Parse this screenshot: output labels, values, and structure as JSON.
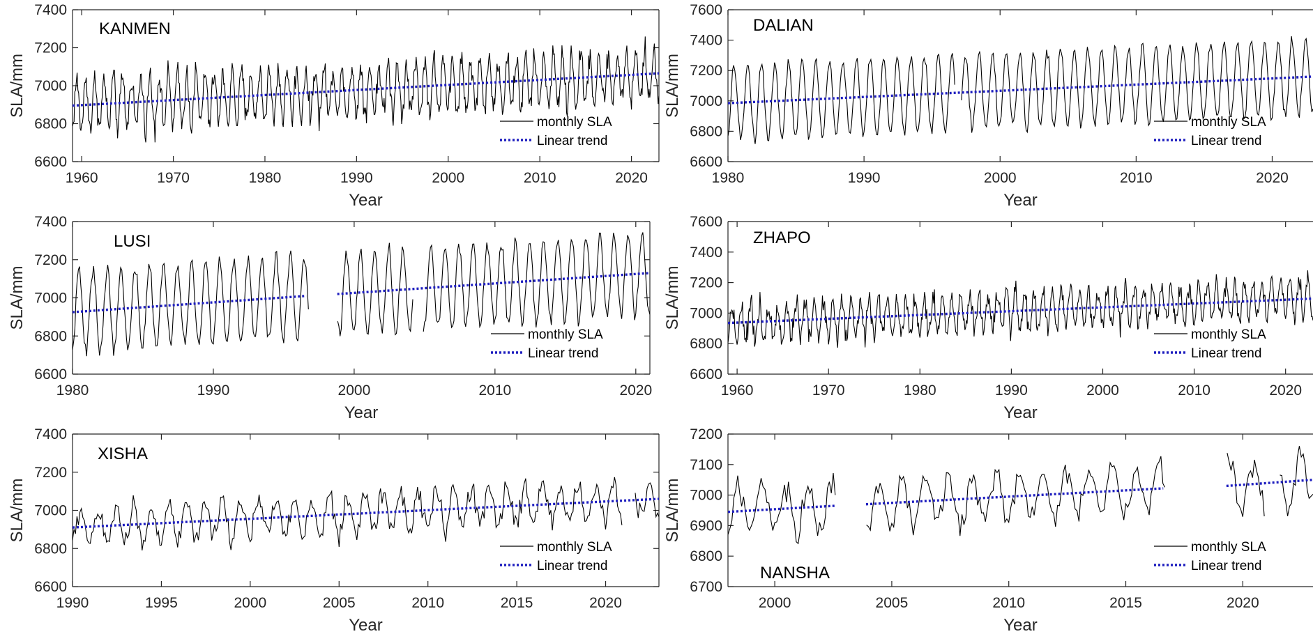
{
  "chart_data": [
    {
      "type": "line",
      "title": "KANMEN",
      "xlabel": "Year",
      "ylabel": "SLA/mm",
      "xlim": [
        1959.0,
        2023.0
      ],
      "ylim": [
        6600,
        7400
      ],
      "xticks": [
        1960,
        1970,
        1980,
        1990,
        2000,
        2010,
        2020
      ],
      "yticks": [
        6600,
        6800,
        7000,
        7200,
        7400
      ],
      "series": [
        {
          "name": "monthly SLA",
          "style": "solid",
          "color": "#000000",
          "amplitude": 130,
          "noise": 70,
          "x_range": [
            1959.0,
            2023.0
          ],
          "start_value": 6900,
          "end_value": 7055,
          "gaps": []
        },
        {
          "name": "Linear trend",
          "style": "dotted",
          "color": "#1f1fbf",
          "x": [
            1959.0,
            2023.0
          ],
          "y": [
            6895,
            7065
          ]
        }
      ],
      "legend": "bottom-right"
    },
    {
      "type": "line",
      "title": "DALIAN",
      "xlabel": "Year",
      "ylabel": "SLA/mm",
      "xlim": [
        1980.0,
        2023.0
      ],
      "ylim": [
        6600,
        7600
      ],
      "xticks": [
        1980,
        1990,
        2000,
        2010,
        2020
      ],
      "yticks": [
        6600,
        6800,
        7000,
        7200,
        7400,
        7600
      ],
      "series": [
        {
          "name": "monthly SLA",
          "style": "solid",
          "color": "#000000",
          "amplitude": 250,
          "noise": 35,
          "x_range": [
            1980.0,
            2023.0
          ],
          "start_value": 6985,
          "end_value": 7160,
          "gaps": [
            [
              1996.7,
              1997.1
            ]
          ]
        },
        {
          "name": "Linear trend",
          "style": "dotted",
          "color": "#1f1fbf",
          "x": [
            1980.0,
            2023.0
          ],
          "y": [
            6985,
            7160
          ]
        }
      ],
      "legend": "bottom-right"
    },
    {
      "type": "line",
      "title": "LUSI",
      "xlabel": "Year",
      "ylabel": "SLA/mm",
      "xlim": [
        1980.0,
        2021.0
      ],
      "ylim": [
        6600,
        7400
      ],
      "xticks": [
        1980,
        1990,
        2000,
        2010,
        2020
      ],
      "yticks": [
        6600,
        6800,
        7000,
        7200,
        7400
      ],
      "series": [
        {
          "name": "monthly SLA",
          "style": "solid",
          "color": "#000000",
          "amplitude": 215,
          "noise": 35,
          "x_range": [
            1980.0,
            2021.0
          ],
          "start_value": 6925,
          "end_value": 7130,
          "gaps": [
            [
              1996.8,
              1998.8
            ],
            [
              2004.2,
              2004.9
            ]
          ]
        },
        {
          "name": "Linear trend",
          "style": "dotted",
          "color": "#1f1fbf",
          "segments": [
            [
              1980.0,
              6925,
              1996.6,
              7010
            ],
            [
              1998.8,
              7020,
              2021.0,
              7130
            ]
          ]
        }
      ],
      "legend": "bottom-right"
    },
    {
      "type": "line",
      "title": "ZHAPO",
      "xlabel": "Year",
      "ylabel": "SLA/mm",
      "xlim": [
        1959.0,
        2023.0
      ],
      "ylim": [
        6600,
        7600
      ],
      "xticks": [
        1960,
        1970,
        1980,
        1990,
        2000,
        2010,
        2020
      ],
      "yticks": [
        6600,
        6800,
        7000,
        7200,
        7400,
        7600
      ],
      "series": [
        {
          "name": "monthly SLA",
          "style": "solid",
          "color": "#000000",
          "amplitude": 120,
          "noise": 75,
          "x_range": [
            1959.0,
            2023.0
          ],
          "start_value": 6935,
          "end_value": 7095,
          "gaps": []
        },
        {
          "name": "Linear trend",
          "style": "dotted",
          "color": "#1f1fbf",
          "x": [
            1959.0,
            2023.0
          ],
          "y": [
            6935,
            7095
          ]
        }
      ],
      "legend": "bottom-right"
    },
    {
      "type": "line",
      "title": "XISHA",
      "xlabel": "Year",
      "ylabel": "SLA/mm",
      "xlim": [
        1990.0,
        2023.0
      ],
      "ylim": [
        6600,
        7400
      ],
      "xticks": [
        1990,
        1995,
        2000,
        2005,
        2010,
        2015,
        2020
      ],
      "yticks": [
        6600,
        6800,
        7000,
        7200,
        7400
      ],
      "series": [
        {
          "name": "monthly SLA",
          "style": "solid",
          "color": "#000000",
          "amplitude": 95,
          "noise": 60,
          "x_range": [
            1990.0,
            2023.0
          ],
          "start_value": 6910,
          "end_value": 7060,
          "gaps": [
            [
              2021.0,
              2021.6
            ]
          ]
        },
        {
          "name": "Linear trend",
          "style": "dotted",
          "color": "#1f1fbf",
          "x": [
            1990.0,
            2023.0
          ],
          "y": [
            6910,
            7060
          ]
        }
      ],
      "legend": "bottom-right"
    },
    {
      "type": "line",
      "title": "NANSHA",
      "xlabel": "Year",
      "ylabel": "SLA/mm",
      "xlim": [
        1998.0,
        2023.0
      ],
      "ylim": [
        6700,
        7200
      ],
      "xticks": [
        2000,
        2005,
        2010,
        2015,
        2020
      ],
      "yticks": [
        6700,
        6800,
        6900,
        7000,
        7100,
        7200
      ],
      "series": [
        {
          "name": "monthly SLA",
          "style": "solid",
          "color": "#000000",
          "amplitude": 75,
          "noise": 45,
          "x_range": [
            1998.0,
            2023.0
          ],
          "start_value": 6945,
          "end_value": 7050,
          "gaps": [
            [
              2002.6,
              2003.9
            ],
            [
              2016.7,
              2019.3
            ],
            [
              2021.0,
              2021.5
            ]
          ]
        },
        {
          "name": "Linear trend",
          "style": "dotted",
          "color": "#1f1fbf",
          "segments": [
            [
              1998.0,
              6945,
              2002.6,
              6965
            ],
            [
              2003.9,
              6970,
              2016.6,
              7022
            ],
            [
              2019.3,
              7030,
              2023.0,
              7050
            ]
          ]
        }
      ],
      "legend": "bottom-right"
    }
  ]
}
